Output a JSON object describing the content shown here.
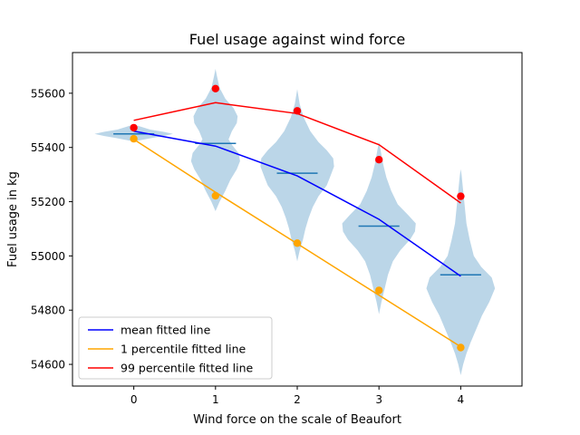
{
  "chart_data": {
    "type": "violin",
    "title": "Fuel usage against wind force",
    "xlabel": "Wind force on the scale of Beaufort",
    "ylabel": "Fuel usage in kg",
    "xlim": [
      -0.75,
      4.75
    ],
    "ylim": [
      54520,
      55750
    ],
    "xticks": [
      0,
      1,
      2,
      3,
      4
    ],
    "yticks": [
      54600,
      54800,
      55000,
      55200,
      55400,
      55600
    ],
    "grid": false,
    "legend_position": "lower-left",
    "violins": [
      {
        "x": 0,
        "median": 55450,
        "min": 55425,
        "max": 55480,
        "profile": [
          [
            55425,
            0.05
          ],
          [
            55435,
            0.22
          ],
          [
            55442,
            0.36
          ],
          [
            55450,
            0.48
          ],
          [
            55458,
            0.36
          ],
          [
            55466,
            0.2
          ],
          [
            55480,
            0.05
          ]
        ]
      },
      {
        "x": 1,
        "median": 55415,
        "min": 55165,
        "max": 55690,
        "profile": [
          [
            55165,
            0.0
          ],
          [
            55200,
            0.05
          ],
          [
            55240,
            0.12
          ],
          [
            55280,
            0.18
          ],
          [
            55320,
            0.26
          ],
          [
            55350,
            0.3
          ],
          [
            55380,
            0.28
          ],
          [
            55410,
            0.2
          ],
          [
            55430,
            0.16
          ],
          [
            55460,
            0.2
          ],
          [
            55490,
            0.26
          ],
          [
            55515,
            0.27
          ],
          [
            55545,
            0.22
          ],
          [
            55580,
            0.12
          ],
          [
            55620,
            0.05
          ],
          [
            55660,
            0.02
          ],
          [
            55690,
            0.0
          ]
        ]
      },
      {
        "x": 2,
        "median": 55305,
        "min": 54980,
        "max": 55615,
        "profile": [
          [
            54980,
            0.0
          ],
          [
            55020,
            0.03
          ],
          [
            55060,
            0.07
          ],
          [
            55100,
            0.1
          ],
          [
            55140,
            0.14
          ],
          [
            55180,
            0.19
          ],
          [
            55220,
            0.26
          ],
          [
            55260,
            0.36
          ],
          [
            55290,
            0.4
          ],
          [
            55330,
            0.45
          ],
          [
            55360,
            0.44
          ],
          [
            55390,
            0.36
          ],
          [
            55420,
            0.26
          ],
          [
            55460,
            0.16
          ],
          [
            55510,
            0.08
          ],
          [
            55560,
            0.03
          ],
          [
            55615,
            0.0
          ]
        ]
      },
      {
        "x": 3,
        "median": 55110,
        "min": 54785,
        "max": 55420,
        "profile": [
          [
            54785,
            0.0
          ],
          [
            54830,
            0.03
          ],
          [
            54880,
            0.07
          ],
          [
            54930,
            0.11
          ],
          [
            54980,
            0.17
          ],
          [
            55020,
            0.26
          ],
          [
            55060,
            0.38
          ],
          [
            55090,
            0.44
          ],
          [
            55120,
            0.45
          ],
          [
            55150,
            0.36
          ],
          [
            55190,
            0.23
          ],
          [
            55240,
            0.15
          ],
          [
            55290,
            0.09
          ],
          [
            55340,
            0.05
          ],
          [
            55390,
            0.02
          ],
          [
            55420,
            0.0
          ]
        ]
      },
      {
        "x": 4,
        "median": 54930,
        "min": 54560,
        "max": 55320,
        "profile": [
          [
            54560,
            0.0
          ],
          [
            54600,
            0.03
          ],
          [
            54640,
            0.07
          ],
          [
            54680,
            0.12
          ],
          [
            54730,
            0.19
          ],
          [
            54780,
            0.26
          ],
          [
            54830,
            0.35
          ],
          [
            54880,
            0.42
          ],
          [
            54920,
            0.38
          ],
          [
            54960,
            0.25
          ],
          [
            55000,
            0.16
          ],
          [
            55060,
            0.11
          ],
          [
            55120,
            0.07
          ],
          [
            55180,
            0.05
          ],
          [
            55240,
            0.03
          ],
          [
            55300,
            0.01
          ],
          [
            55320,
            0.0
          ]
        ]
      }
    ],
    "series": [
      {
        "name": "mean fitted line",
        "color": "#0000ff",
        "x": [
          0,
          1,
          2,
          3,
          4
        ],
        "y": [
          55460,
          55405,
          55295,
          55135,
          54925
        ]
      },
      {
        "name": "1 percentile fitted line",
        "color": "#ffa500",
        "x": [
          0,
          1,
          2,
          3,
          4
        ],
        "y": [
          55430,
          55235,
          55045,
          54855,
          54665
        ]
      },
      {
        "name": "99 percentile fitted line",
        "color": "#ff0000",
        "x": [
          0,
          1,
          2,
          3,
          4
        ],
        "y": [
          55500,
          55565,
          55525,
          55410,
          55195
        ]
      }
    ],
    "points": [
      {
        "color": "#ffa500",
        "x": [
          0,
          1,
          2,
          3,
          4
        ],
        "y": [
          55432,
          55222,
          55047,
          54873,
          54662
        ]
      },
      {
        "color": "#ff0000",
        "x": [
          0,
          1,
          2,
          3,
          4
        ],
        "y": [
          55473,
          55617,
          55535,
          55355,
          55220
        ]
      }
    ],
    "violin_color": "#1f77b4",
    "median_color": "#1f77b4"
  }
}
